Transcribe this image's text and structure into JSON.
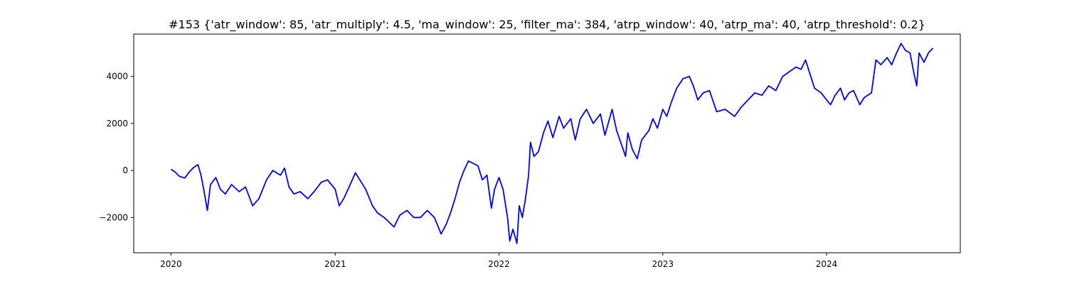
{
  "chart_data": {
    "type": "line",
    "title": "#153 {'atr_window': 85, 'atr_multiply': 4.5, 'ma_window': 25, 'filter_ma': 384, 'atrp_window': 40, 'atrp_ma': 40, 'atrp_threshold': 0.2}",
    "xlabel": "",
    "ylabel": "",
    "xlim": [
      "2019-10-10",
      "2024-10-25"
    ],
    "ylim": [
      -3500,
      5800
    ],
    "grid": false,
    "legend": "none",
    "x_ticks": [
      "2020",
      "2021",
      "2022",
      "2023",
      "2024"
    ],
    "y_ticks": [
      -2000,
      0,
      2000,
      4000
    ],
    "line_color": "#0000ff",
    "series": [
      {
        "points": [
          [
            "2020-01-01",
            50
          ],
          [
            "2020-01-10",
            -60
          ],
          [
            "2020-01-20",
            -250
          ],
          [
            "2020-02-01",
            -320
          ],
          [
            "2020-02-10",
            -80
          ],
          [
            "2020-02-20",
            120
          ],
          [
            "2020-03-01",
            250
          ],
          [
            "2020-03-08",
            -200
          ],
          [
            "2020-03-15",
            -900
          ],
          [
            "2020-03-22",
            -1700
          ],
          [
            "2020-03-29",
            -600
          ],
          [
            "2020-04-10",
            -300
          ],
          [
            "2020-04-20",
            -800
          ],
          [
            "2020-05-01",
            -1000
          ],
          [
            "2020-05-15",
            -600
          ],
          [
            "2020-06-01",
            -900
          ],
          [
            "2020-06-15",
            -700
          ],
          [
            "2020-07-01",
            -1500
          ],
          [
            "2020-07-15",
            -1200
          ],
          [
            "2020-08-01",
            -400
          ],
          [
            "2020-08-15",
            0
          ],
          [
            "2020-09-01",
            -200
          ],
          [
            "2020-09-10",
            100
          ],
          [
            "2020-09-20",
            -700
          ],
          [
            "2020-10-01",
            -1000
          ],
          [
            "2020-10-15",
            -900
          ],
          [
            "2020-11-01",
            -1200
          ],
          [
            "2020-11-15",
            -900
          ],
          [
            "2020-12-01",
            -500
          ],
          [
            "2020-12-15",
            -400
          ],
          [
            "2021-01-01",
            -800
          ],
          [
            "2021-01-10",
            -1500
          ],
          [
            "2021-01-20",
            -1200
          ],
          [
            "2021-02-01",
            -700
          ],
          [
            "2021-02-15",
            -100
          ],
          [
            "2021-02-25",
            -400
          ],
          [
            "2021-03-10",
            -800
          ],
          [
            "2021-03-25",
            -1500
          ],
          [
            "2021-04-05",
            -1800
          ],
          [
            "2021-04-20",
            -2000
          ],
          [
            "2021-05-01",
            -2200
          ],
          [
            "2021-05-12",
            -2400
          ],
          [
            "2021-05-25",
            -1900
          ],
          [
            "2021-06-10",
            -1700
          ],
          [
            "2021-06-25",
            -2000
          ],
          [
            "2021-07-10",
            -2000
          ],
          [
            "2021-07-25",
            -1700
          ],
          [
            "2021-08-10",
            -2000
          ],
          [
            "2021-08-25",
            -2700
          ],
          [
            "2021-09-05",
            -2300
          ],
          [
            "2021-09-15",
            -1800
          ],
          [
            "2021-09-25",
            -1200
          ],
          [
            "2021-10-05",
            -500
          ],
          [
            "2021-10-15",
            0
          ],
          [
            "2021-10-25",
            400
          ],
          [
            "2021-11-05",
            300
          ],
          [
            "2021-11-15",
            200
          ],
          [
            "2021-11-25",
            -400
          ],
          [
            "2021-12-05",
            -200
          ],
          [
            "2021-12-15",
            -1600
          ],
          [
            "2021-12-22",
            -800
          ],
          [
            "2022-01-01",
            -300
          ],
          [
            "2022-01-10",
            -800
          ],
          [
            "2022-01-20",
            -2000
          ],
          [
            "2022-01-25",
            -3000
          ],
          [
            "2022-02-01",
            -2500
          ],
          [
            "2022-02-10",
            -3100
          ],
          [
            "2022-02-15",
            -1500
          ],
          [
            "2022-02-22",
            -2000
          ],
          [
            "2022-03-01",
            -1200
          ],
          [
            "2022-03-08",
            -200
          ],
          [
            "2022-03-12",
            1200
          ],
          [
            "2022-03-20",
            600
          ],
          [
            "2022-03-30",
            800
          ],
          [
            "2022-04-10",
            1600
          ],
          [
            "2022-04-20",
            2100
          ],
          [
            "2022-05-01",
            1400
          ],
          [
            "2022-05-15",
            2300
          ],
          [
            "2022-05-25",
            1800
          ],
          [
            "2022-06-10",
            2200
          ],
          [
            "2022-06-20",
            1300
          ],
          [
            "2022-07-01",
            2200
          ],
          [
            "2022-07-15",
            2600
          ],
          [
            "2022-07-30",
            2000
          ],
          [
            "2022-08-15",
            2400
          ],
          [
            "2022-08-25",
            1500
          ],
          [
            "2022-09-10",
            2600
          ],
          [
            "2022-09-20",
            1700
          ],
          [
            "2022-10-01",
            1100
          ],
          [
            "2022-10-10",
            600
          ],
          [
            "2022-10-15",
            1600
          ],
          [
            "2022-10-25",
            900
          ],
          [
            "2022-11-05",
            500
          ],
          [
            "2022-11-15",
            1300
          ],
          [
            "2022-12-01",
            1700
          ],
          [
            "2022-12-10",
            2200
          ],
          [
            "2022-12-20",
            1800
          ],
          [
            "2023-01-01",
            2600
          ],
          [
            "2023-01-10",
            2300
          ],
          [
            "2023-01-20",
            2900
          ],
          [
            "2023-02-01",
            3500
          ],
          [
            "2023-02-15",
            3900
          ],
          [
            "2023-03-01",
            4000
          ],
          [
            "2023-03-10",
            3600
          ],
          [
            "2023-03-20",
            3000
          ],
          [
            "2023-04-01",
            3300
          ],
          [
            "2023-04-15",
            3400
          ],
          [
            "2023-05-01",
            2500
          ],
          [
            "2023-05-20",
            2600
          ],
          [
            "2023-06-10",
            2300
          ],
          [
            "2023-06-25",
            2700
          ],
          [
            "2023-07-10",
            3000
          ],
          [
            "2023-07-25",
            3300
          ],
          [
            "2023-08-10",
            3200
          ],
          [
            "2023-08-25",
            3600
          ],
          [
            "2023-09-10",
            3400
          ],
          [
            "2023-09-25",
            4000
          ],
          [
            "2023-10-10",
            4200
          ],
          [
            "2023-10-25",
            4400
          ],
          [
            "2023-11-05",
            4300
          ],
          [
            "2023-11-15",
            4700
          ],
          [
            "2023-11-25",
            4100
          ],
          [
            "2023-12-05",
            3500
          ],
          [
            "2023-12-20",
            3300
          ],
          [
            "2024-01-01",
            3000
          ],
          [
            "2024-01-10",
            2800
          ],
          [
            "2024-01-20",
            3200
          ],
          [
            "2024-02-01",
            3500
          ],
          [
            "2024-02-10",
            3000
          ],
          [
            "2024-02-20",
            3300
          ],
          [
            "2024-03-01",
            3400
          ],
          [
            "2024-03-15",
            2800
          ],
          [
            "2024-03-25",
            3100
          ],
          [
            "2024-04-10",
            3300
          ],
          [
            "2024-04-20",
            4700
          ],
          [
            "2024-05-01",
            4500
          ],
          [
            "2024-05-15",
            4800
          ],
          [
            "2024-05-25",
            4500
          ],
          [
            "2024-06-05",
            5000
          ],
          [
            "2024-06-15",
            5400
          ],
          [
            "2024-06-25",
            5100
          ],
          [
            "2024-07-05",
            5000
          ],
          [
            "2024-07-15",
            4000
          ],
          [
            "2024-07-20",
            3600
          ],
          [
            "2024-07-25",
            5000
          ],
          [
            "2024-08-05",
            4600
          ],
          [
            "2024-08-15",
            5000
          ],
          [
            "2024-08-25",
            5200
          ]
        ]
      }
    ]
  }
}
